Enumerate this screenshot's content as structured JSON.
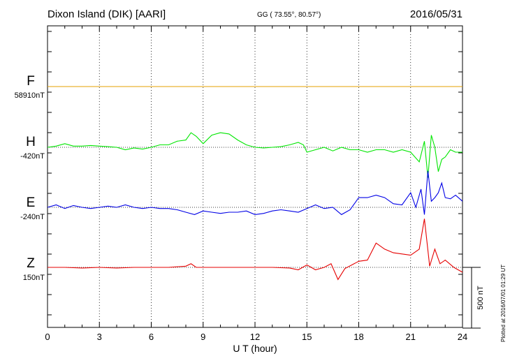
{
  "header": {
    "title": "Dixon Island (DIK)  [AARI]",
    "coords": "GG ( 73.55°,  80.57°)",
    "date": "2016/05/31"
  },
  "plotted_note": "Plotted at 2016/07/01 01:29 UT",
  "chart_data": {
    "type": "line",
    "xlabel": "U T (hour)",
    "xlim": [
      0,
      24
    ],
    "xticks": [
      "0",
      "3",
      "6",
      "9",
      "12",
      "15",
      "18",
      "21",
      "24"
    ],
    "scale_bar": "500 nT",
    "channels": [
      {
        "name": "F",
        "baseline": "58910nT",
        "color": "#e6a000",
        "x": [
          0,
          24
        ],
        "y": [
          0,
          0
        ]
      },
      {
        "name": "H",
        "baseline": "-420nT",
        "color": "#00e600",
        "x": [
          0,
          0.5,
          1,
          1.5,
          2,
          2.5,
          3,
          3.5,
          4,
          4.5,
          5,
          5.5,
          6,
          6.5,
          7,
          7.5,
          8,
          8.3,
          8.6,
          9,
          9.5,
          10,
          10.5,
          11,
          11.5,
          12,
          12.5,
          13,
          13.5,
          14,
          14.5,
          14.8,
          15,
          15.5,
          16,
          16.5,
          17,
          17.5,
          18,
          18.5,
          19,
          19.5,
          20,
          20.5,
          21,
          21.5,
          21.8,
          22,
          22.2,
          22.4,
          22.6,
          22.8,
          23,
          23.3,
          23.6,
          24
        ],
        "y": [
          0,
          10,
          30,
          10,
          10,
          15,
          10,
          5,
          0,
          -20,
          -5,
          -15,
          0,
          20,
          20,
          50,
          60,
          120,
          90,
          30,
          100,
          120,
          110,
          60,
          20,
          0,
          -5,
          0,
          5,
          20,
          40,
          20,
          -40,
          -20,
          0,
          -30,
          0,
          -20,
          -20,
          -40,
          -20,
          -20,
          -40,
          -20,
          -40,
          -120,
          50,
          -250,
          100,
          0,
          -200,
          -100,
          -80,
          -20,
          -40,
          -40
        ]
      },
      {
        "name": "E",
        "baseline": "-240nT",
        "color": "#0000e6",
        "x": [
          0,
          0.5,
          1,
          1.5,
          2,
          2.5,
          3,
          3.5,
          4,
          4.5,
          5,
          5.5,
          6,
          6.5,
          7,
          7.5,
          8,
          8.5,
          9,
          9.5,
          10,
          10.5,
          11,
          11.5,
          12,
          12.5,
          13,
          13.5,
          14,
          14.5,
          15,
          15.5,
          16,
          16.5,
          17,
          17.5,
          18,
          18.5,
          19,
          19.5,
          20,
          20.5,
          21,
          21.3,
          21.6,
          21.8,
          22,
          22.2,
          22.4,
          22.6,
          22.8,
          23,
          23.3,
          23.6,
          24
        ],
        "y": [
          0,
          20,
          -10,
          15,
          0,
          -10,
          0,
          10,
          0,
          20,
          0,
          -10,
          0,
          -10,
          -10,
          -20,
          -40,
          -60,
          -30,
          -40,
          -50,
          -40,
          -40,
          -30,
          -60,
          -50,
          -30,
          -20,
          -30,
          -40,
          -10,
          20,
          -10,
          0,
          -60,
          -20,
          80,
          80,
          100,
          80,
          30,
          20,
          120,
          0,
          150,
          -60,
          300,
          50,
          80,
          120,
          200,
          80,
          70,
          100,
          50
        ]
      },
      {
        "name": "Z",
        "baseline": "150nT",
        "color": "#e60000",
        "x": [
          0,
          1,
          2,
          3,
          4,
          5,
          6,
          7,
          8,
          8.3,
          8.6,
          9,
          10,
          11,
          12,
          13,
          14,
          14.5,
          15,
          15.5,
          16,
          16.4,
          16.8,
          17.2,
          17.6,
          18,
          18.5,
          19,
          19.5,
          20,
          21,
          21.5,
          21.8,
          22.1,
          22.4,
          22.7,
          23,
          23.5,
          24
        ],
        "y": [
          0,
          0,
          -5,
          0,
          -5,
          0,
          0,
          0,
          10,
          30,
          0,
          0,
          0,
          0,
          0,
          0,
          -5,
          -20,
          20,
          -20,
          0,
          30,
          -100,
          -10,
          20,
          50,
          60,
          200,
          150,
          120,
          100,
          150,
          400,
          10,
          150,
          30,
          60,
          0,
          -40
        ]
      }
    ]
  }
}
